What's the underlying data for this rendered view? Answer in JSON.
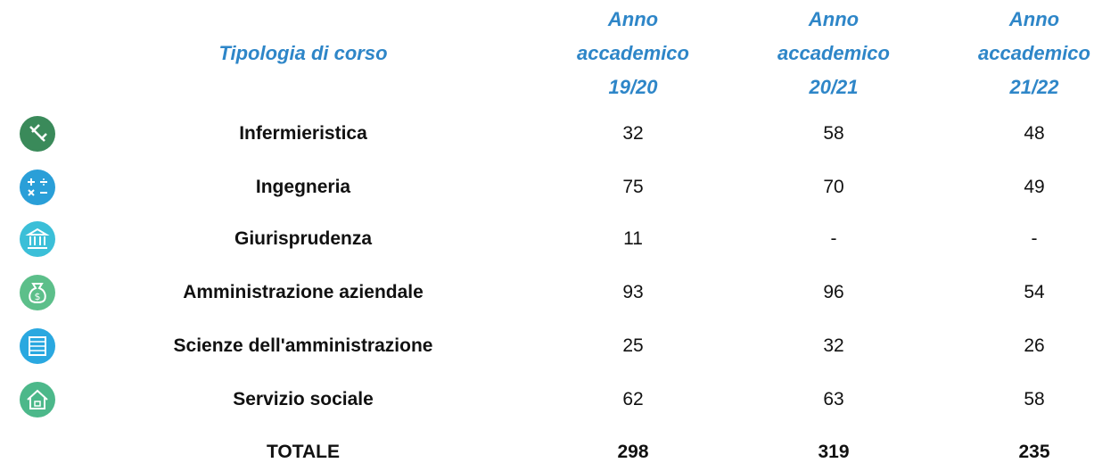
{
  "table": {
    "header": [
      "Tipologia di corso",
      "Anno accademico 19/20",
      "Anno accademico 20/21",
      "Anno accademico 21/22"
    ],
    "rows": [
      [
        "Infermieristica",
        32,
        58,
        48
      ],
      [
        "Ingegneria",
        75,
        70,
        49
      ],
      [
        "Giurisprudenza",
        11,
        "-",
        "-"
      ],
      [
        "Amministrazione aziendale",
        93,
        96,
        54
      ],
      [
        "Scienze dell'amministrazione",
        25,
        32,
        26
      ],
      [
        "Servizio sociale",
        62,
        63,
        58
      ]
    ],
    "total": [
      "TOTALE",
      298,
      319,
      235
    ]
  }
}
